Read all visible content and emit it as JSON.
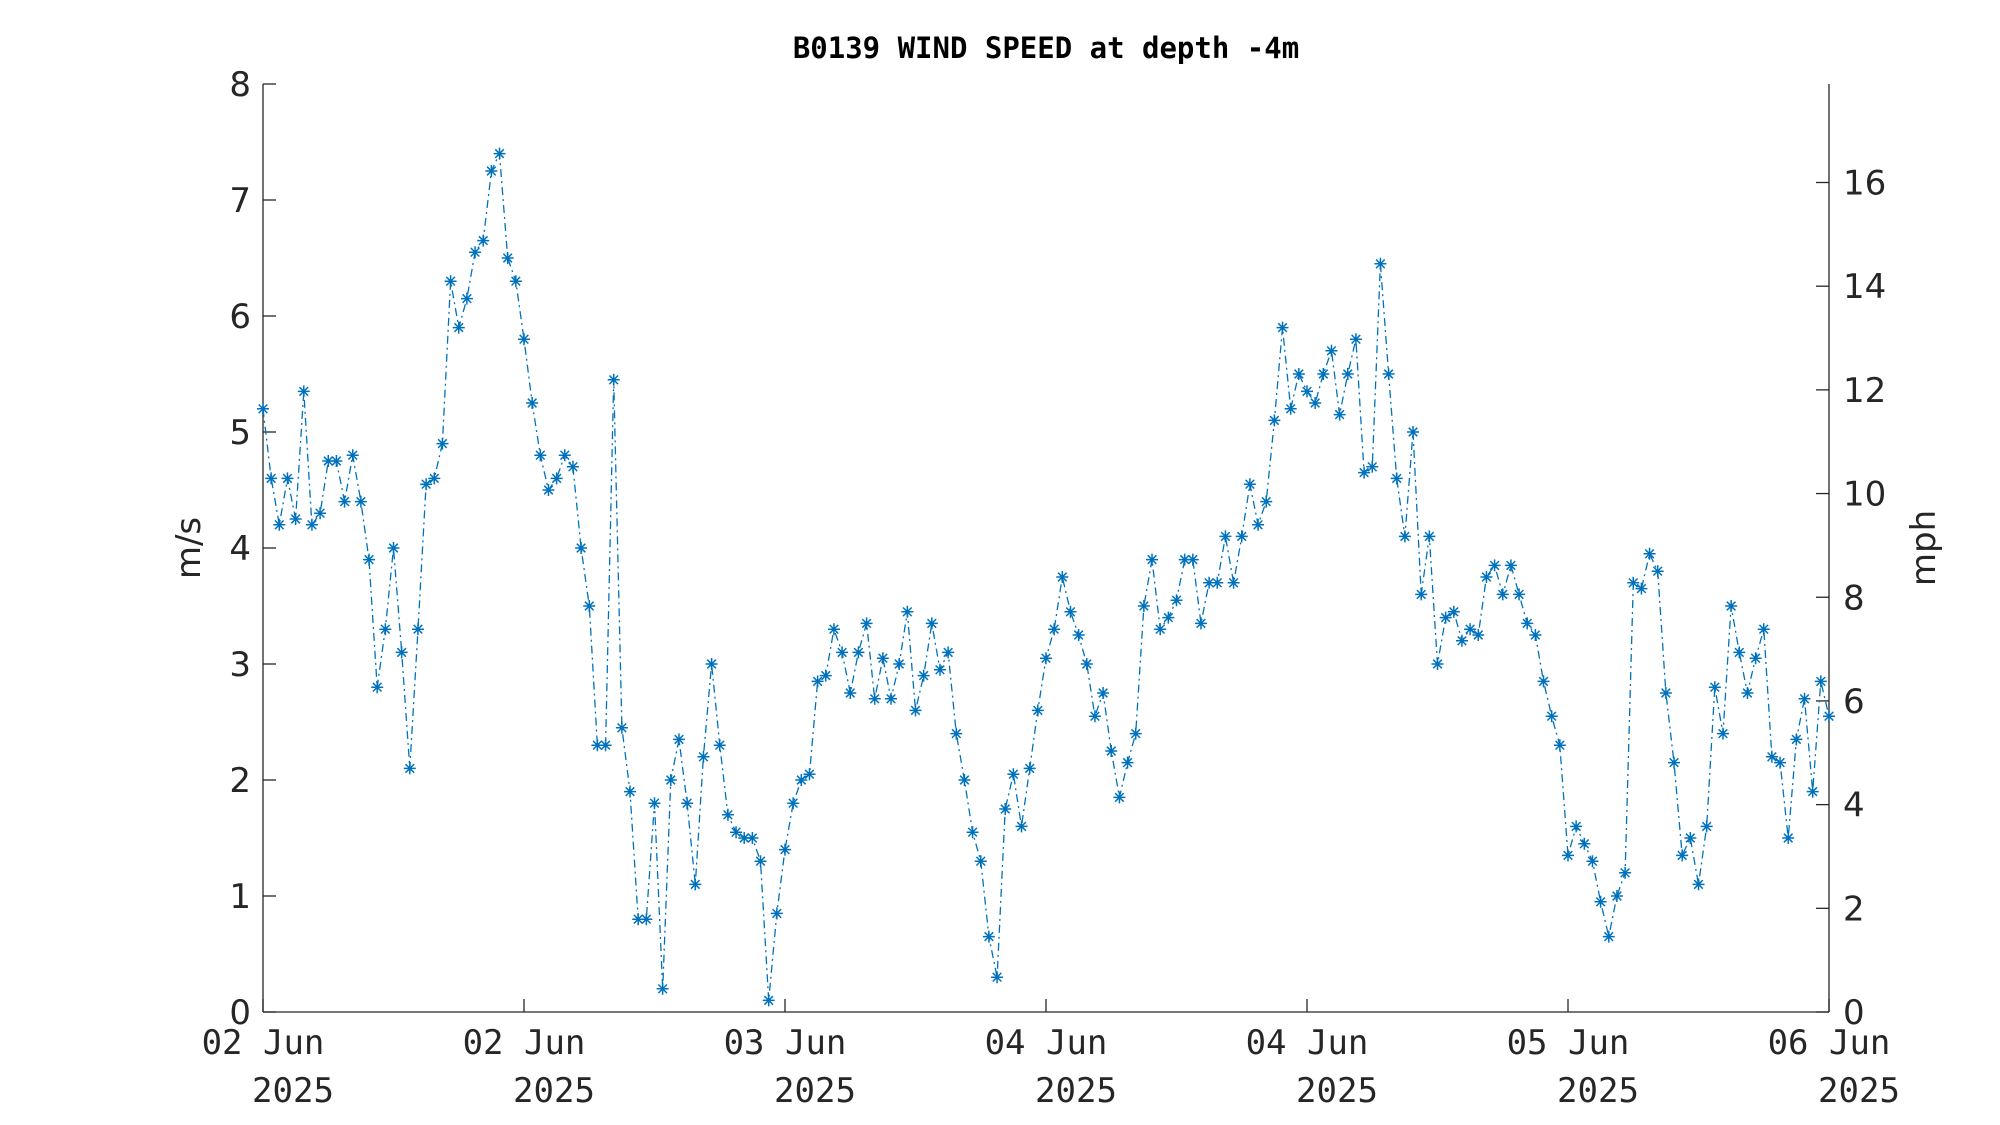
{
  "chart_data": {
    "type": "line",
    "title": "B0139 WIND SPEED at depth -4m",
    "ylabel": "m/s",
    "y2label": "mph",
    "xlim": [
      0,
      96
    ],
    "xticks": [
      {
        "value": 0,
        "label": "02 Jun 2025"
      },
      {
        "value": 16,
        "label": "02 Jun 2025"
      },
      {
        "value": 32,
        "label": "03 Jun 2025"
      },
      {
        "value": 48,
        "label": "04 Jun 2025"
      },
      {
        "value": 64,
        "label": "04 Jun 2025"
      },
      {
        "value": 80,
        "label": "05 Jun 2025"
      },
      {
        "value": 96,
        "label": "06 Jun 2025"
      }
    ],
    "ylim": [
      0,
      8
    ],
    "yticks": [
      0,
      1,
      2,
      3,
      4,
      5,
      6,
      7,
      8
    ],
    "y2lim": [
      0,
      17.9
    ],
    "y2ticks": [
      0,
      2,
      4,
      6,
      8,
      10,
      12,
      14,
      16
    ],
    "x": [
      0,
      0.5,
      1,
      1.5,
      2,
      2.5,
      3,
      3.5,
      4,
      4.5,
      5,
      5.5,
      6,
      6.5,
      7,
      7.5,
      8,
      8.5,
      9,
      9.5,
      10,
      10.5,
      11,
      11.5,
      12,
      12.5,
      13,
      13.5,
      14,
      14.5,
      15,
      15.5,
      16,
      16.5,
      17,
      17.5,
      18,
      18.5,
      19,
      19.5,
      20,
      20.5,
      21,
      21.5,
      22,
      22.5,
      23,
      23.5,
      24,
      24.5,
      25,
      25.5,
      26,
      26.5,
      27,
      27.5,
      28,
      28.5,
      29,
      29.5,
      30,
      30.5,
      31,
      31.5,
      32,
      32.5,
      33,
      33.5,
      34,
      34.5,
      35,
      35.5,
      36,
      36.5,
      37,
      37.5,
      38,
      38.5,
      39,
      39.5,
      40,
      40.5,
      41,
      41.5,
      42,
      42.5,
      43,
      43.5,
      44,
      44.5,
      45,
      45.5,
      46,
      46.5,
      47,
      47.5,
      48,
      48.5,
      49,
      49.5,
      50,
      50.5,
      51,
      51.5,
      52,
      52.5,
      53,
      53.5,
      54,
      54.5,
      55,
      55.5,
      56,
      56.5,
      57,
      57.5,
      58,
      58.5,
      59,
      59.5,
      60,
      60.5,
      61,
      61.5,
      62,
      62.5,
      63,
      63.5,
      64,
      64.5,
      65,
      65.5,
      66,
      66.5,
      67,
      67.5,
      68,
      68.5,
      69,
      69.5,
      70,
      70.5,
      71,
      71.5,
      72,
      72.5,
      73,
      73.5,
      74,
      74.5,
      75,
      75.5,
      76,
      76.5,
      77,
      77.5,
      78,
      78.5,
      79,
      79.5,
      80,
      80.5,
      81,
      81.5,
      82,
      82.5,
      83,
      83.5,
      84,
      84.5,
      85,
      85.5,
      86,
      86.5,
      87,
      87.5,
      88,
      88.5,
      89,
      89.5,
      90,
      90.5,
      91,
      91.5,
      92,
      92.5,
      93,
      93.5,
      94,
      94.5,
      95,
      95.5,
      96
    ],
    "series": [
      {
        "color": "#0072bd",
        "values": [
          5.2,
          4.6,
          4.2,
          4.6,
          4.25,
          5.35,
          4.2,
          4.3,
          4.75,
          4.75,
          4.4,
          4.8,
          4.4,
          3.9,
          2.8,
          3.3,
          4.0,
          3.1,
          2.1,
          3.3,
          4.55,
          4.6,
          4.9,
          6.3,
          5.9,
          6.15,
          6.55,
          6.65,
          7.25,
          7.4,
          6.5,
          6.3,
          5.8,
          5.25,
          4.8,
          4.5,
          4.6,
          4.8,
          4.7,
          4.0,
          3.5,
          2.3,
          2.3,
          5.45,
          2.45,
          1.9,
          0.8,
          0.8,
          1.8,
          0.2,
          2.0,
          2.35,
          1.8,
          1.1,
          2.2,
          3.0,
          2.3,
          1.7,
          1.55,
          1.5,
          1.5,
          1.3,
          0.1,
          0.85,
          1.4,
          1.8,
          2.0,
          2.05,
          2.85,
          2.9,
          3.3,
          3.1,
          2.75,
          3.1,
          3.35,
          2.7,
          3.05,
          2.7,
          3.0,
          3.45,
          2.6,
          2.9,
          3.35,
          2.95,
          3.1,
          2.4,
          2.0,
          1.55,
          1.3,
          0.65,
          0.3,
          1.75,
          2.05,
          1.6,
          2.1,
          2.6,
          3.05,
          3.3,
          3.75,
          3.45,
          3.25,
          3.0,
          2.55,
          2.75,
          2.25,
          1.85,
          2.15,
          2.4,
          3.5,
          3.9,
          3.3,
          3.4,
          3.55,
          3.9,
          3.9,
          3.35,
          3.7,
          3.7,
          4.1,
          3.7,
          4.1,
          4.55,
          4.2,
          4.4,
          5.1,
          5.9,
          5.2,
          5.5,
          5.35,
          5.25,
          5.5,
          5.7,
          5.15,
          5.5,
          5.8,
          4.65,
          4.7,
          6.45,
          5.5,
          4.6,
          4.1,
          5.0,
          3.6,
          4.1,
          3.0,
          3.4,
          3.45,
          3.2,
          3.3,
          3.25,
          3.75,
          3.85,
          3.6,
          3.85,
          3.6,
          3.35,
          3.25,
          2.85,
          2.55,
          2.3,
          1.35,
          1.6,
          1.45,
          1.3,
          0.95,
          0.65,
          1.0,
          1.2,
          3.7,
          3.65,
          3.95,
          3.8,
          2.75,
          2.15,
          1.35,
          1.5,
          1.1,
          1.6,
          2.8,
          2.4,
          3.5,
          3.1,
          2.75,
          3.05,
          3.3,
          2.2,
          2.15,
          1.5,
          2.35,
          2.7,
          1.9,
          2.85,
          2.55
        ]
      }
    ]
  }
}
